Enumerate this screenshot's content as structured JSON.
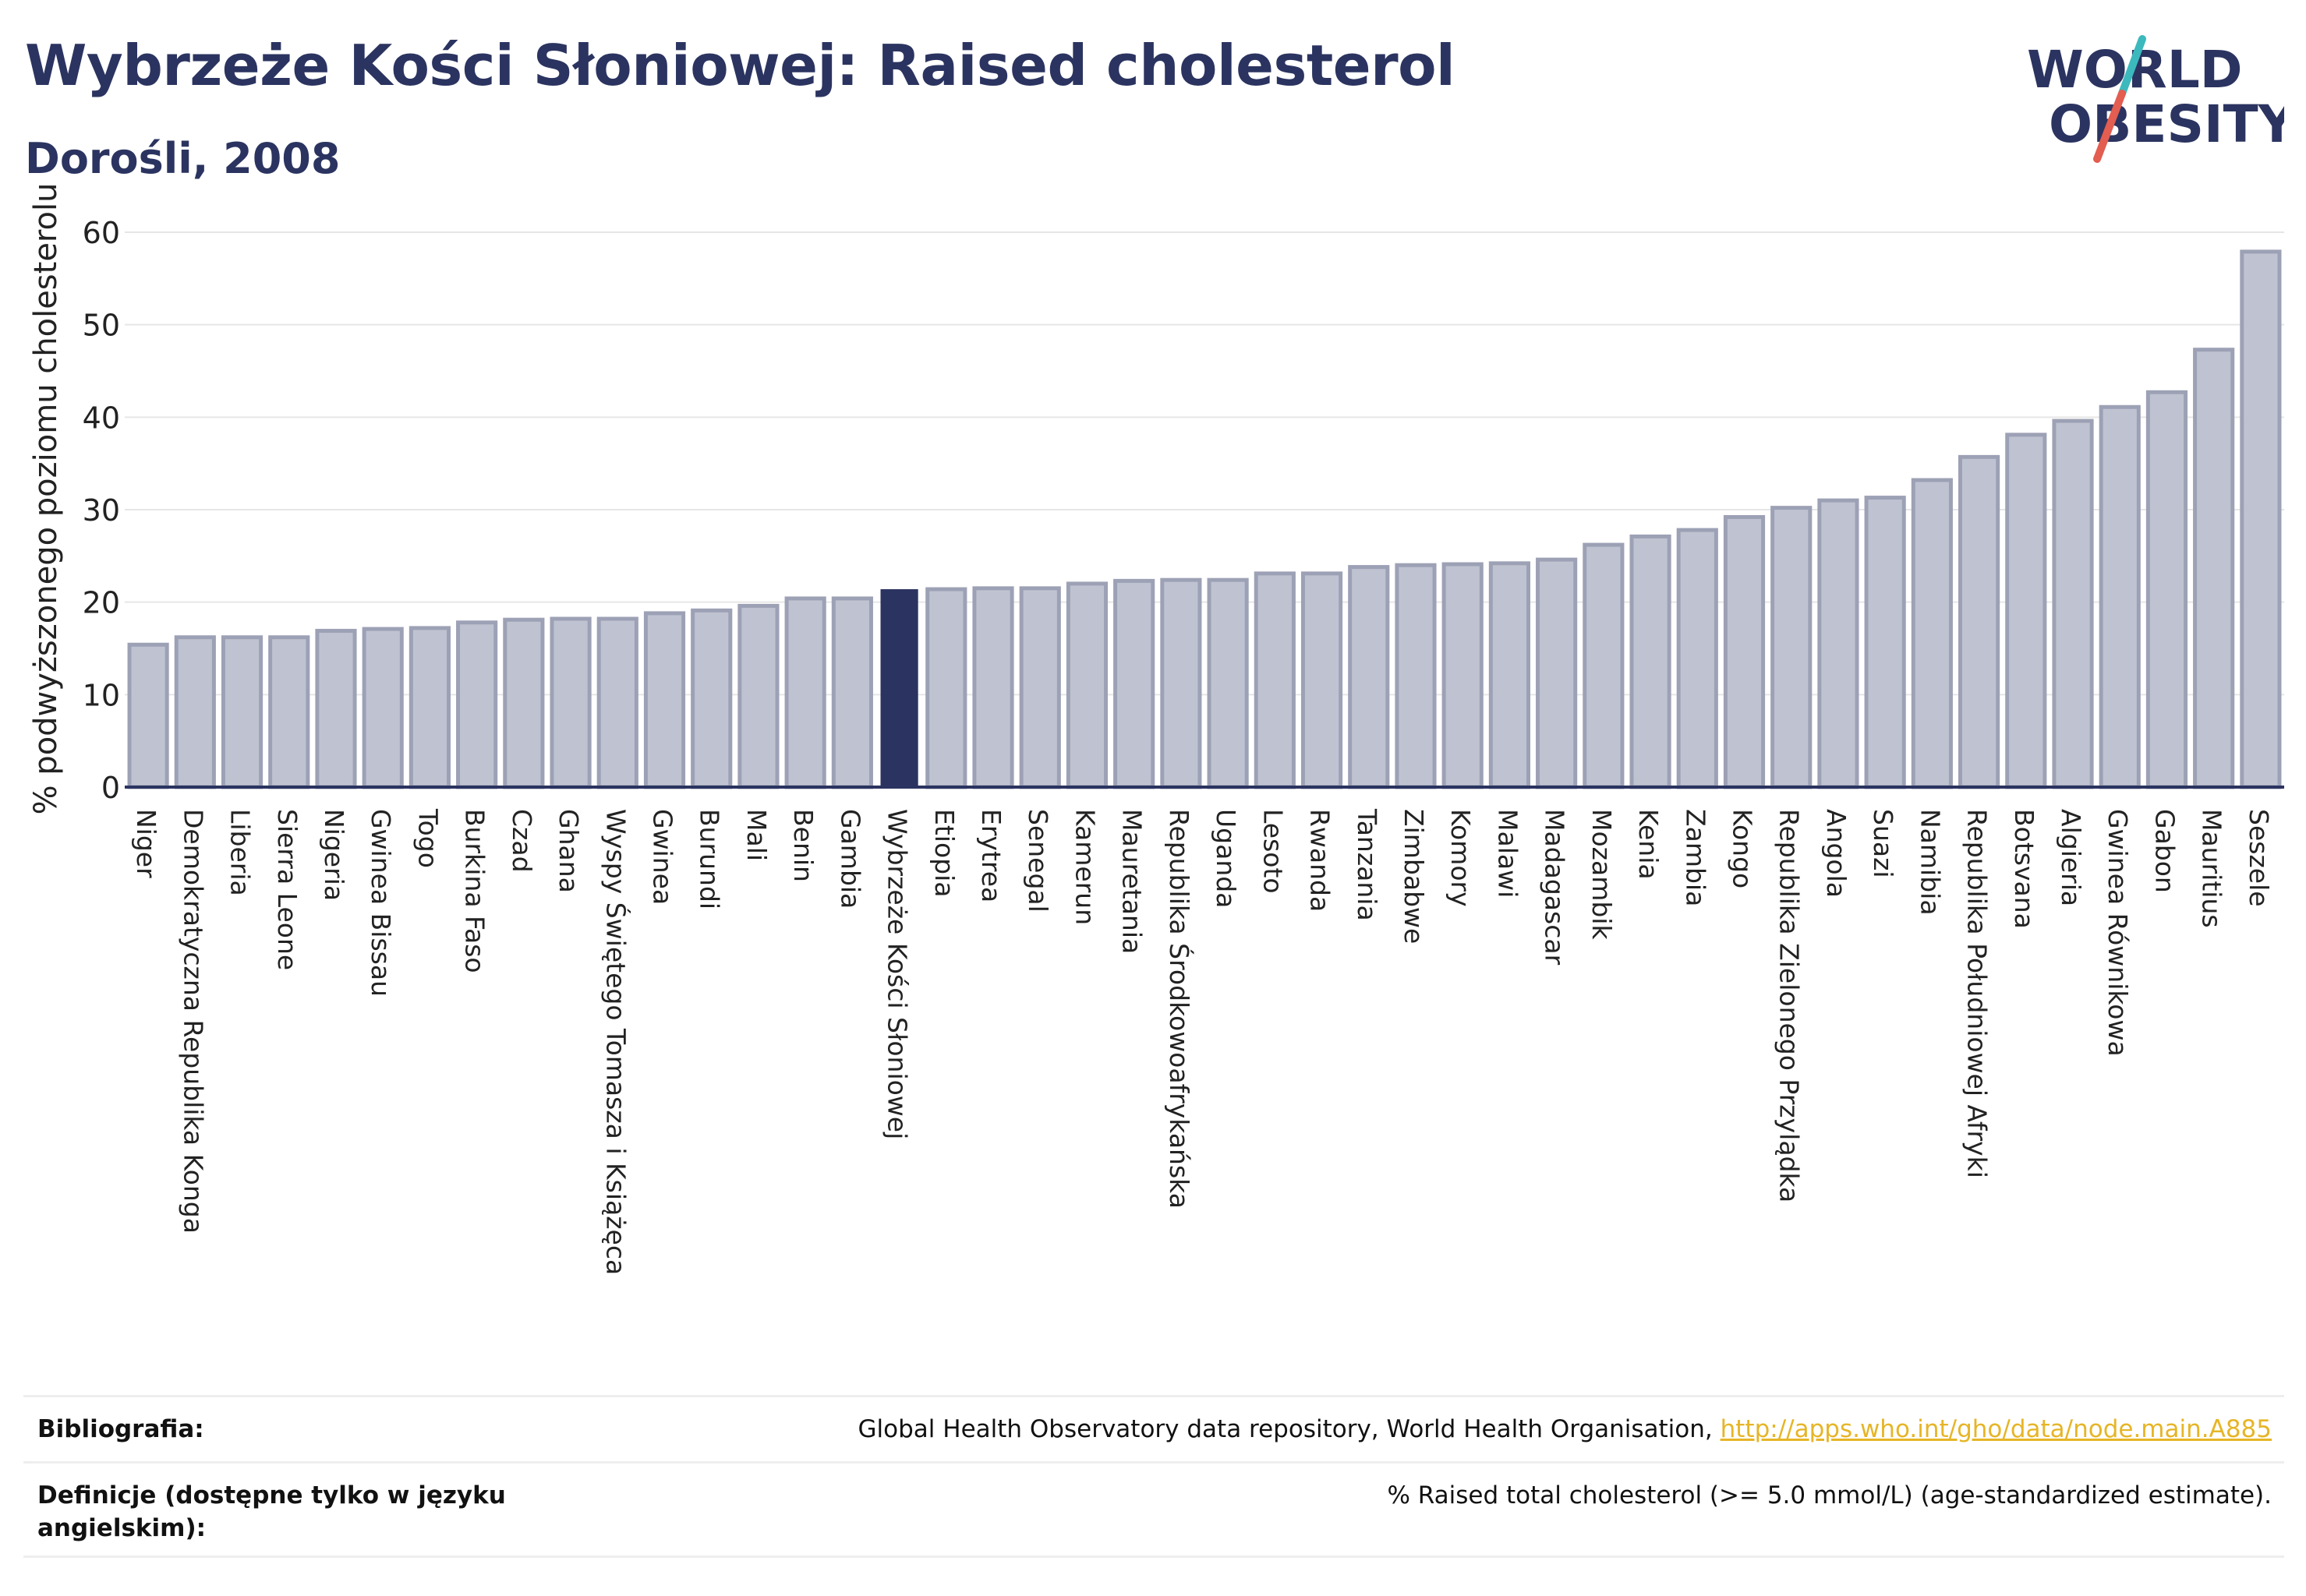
{
  "header": {
    "title": "Wybrzeże Kości Słoniowej: Raised cholesterol",
    "subtitle": "Dorośli, 2008"
  },
  "logo": {
    "line1": "WORLD",
    "line2": "OBESITY"
  },
  "colors": {
    "bar": "#bfc3d1",
    "bar_stroke": "#9da1b5",
    "highlight": "#2b3460",
    "grid": "#e6e6e6",
    "text": "#2b3460",
    "logo_teal": "#3cb9bd",
    "logo_red": "#e35d50",
    "link": "#e6b527"
  },
  "chart_data": {
    "type": "bar",
    "ylabel": "% podwyższonego poziomu cholesterolu",
    "ylim": [
      0,
      60
    ],
    "yticks": [
      0,
      10,
      20,
      30,
      40,
      50,
      60
    ],
    "grid": true,
    "highlight": "Wybrzeże Kości Słoniowej",
    "categories": [
      "Niger",
      "Demokratyczna Republika Konga",
      "Liberia",
      "Sierra Leone",
      "Nigeria",
      "Gwinea Bissau",
      "Togo",
      "Burkina Faso",
      "Czad",
      "Ghana",
      "Wyspy Świętego Tomasza i Książęca",
      "Gwinea",
      "Burundi",
      "Mali",
      "Benin",
      "Gambia",
      "Wybrzeże Kości Słoniowej",
      "Etiopia",
      "Erytrea",
      "Senegal",
      "Kamerun",
      "Mauretania",
      "Republika Środkowoafrykańska",
      "Uganda",
      "Lesoto",
      "Rwanda",
      "Tanzania",
      "Zimbabwe",
      "Komory",
      "Malawi",
      "Madagascar",
      "Mozambik",
      "Kenia",
      "Zambia",
      "Kongo",
      "Republika Zielonego Przylądka",
      "Angola",
      "Suazi",
      "Namibia",
      "Republika Południowej Afryki",
      "Botsvana",
      "Algieria",
      "Gwinea Równikowa",
      "Gabon",
      "Mauritius",
      "Seszele"
    ],
    "values": [
      15.4,
      16.2,
      16.2,
      16.2,
      16.9,
      17.1,
      17.2,
      17.8,
      18.1,
      18.2,
      18.2,
      18.8,
      19.1,
      19.6,
      20.4,
      20.4,
      21.4,
      21.4,
      21.5,
      21.5,
      22.0,
      22.3,
      22.4,
      22.4,
      23.1,
      23.1,
      23.8,
      24.0,
      24.1,
      24.2,
      24.6,
      26.2,
      27.1,
      27.8,
      29.2,
      30.2,
      31.0,
      31.3,
      33.2,
      35.7,
      38.1,
      39.6,
      41.1,
      42.7,
      47.3,
      57.9
    ]
  },
  "bibliography": {
    "label": "Bibliografia:",
    "text": "Global Health Observatory data repository, World Health Organisation, ",
    "link": "http://apps.who.int/gho/data/node.main.A885"
  },
  "definition": {
    "label": "Definicje (dostępne tylko w języku angielskim):",
    "text": "% Raised total cholesterol (>= 5.0 mmol/L) (age-standardized estimate)."
  }
}
